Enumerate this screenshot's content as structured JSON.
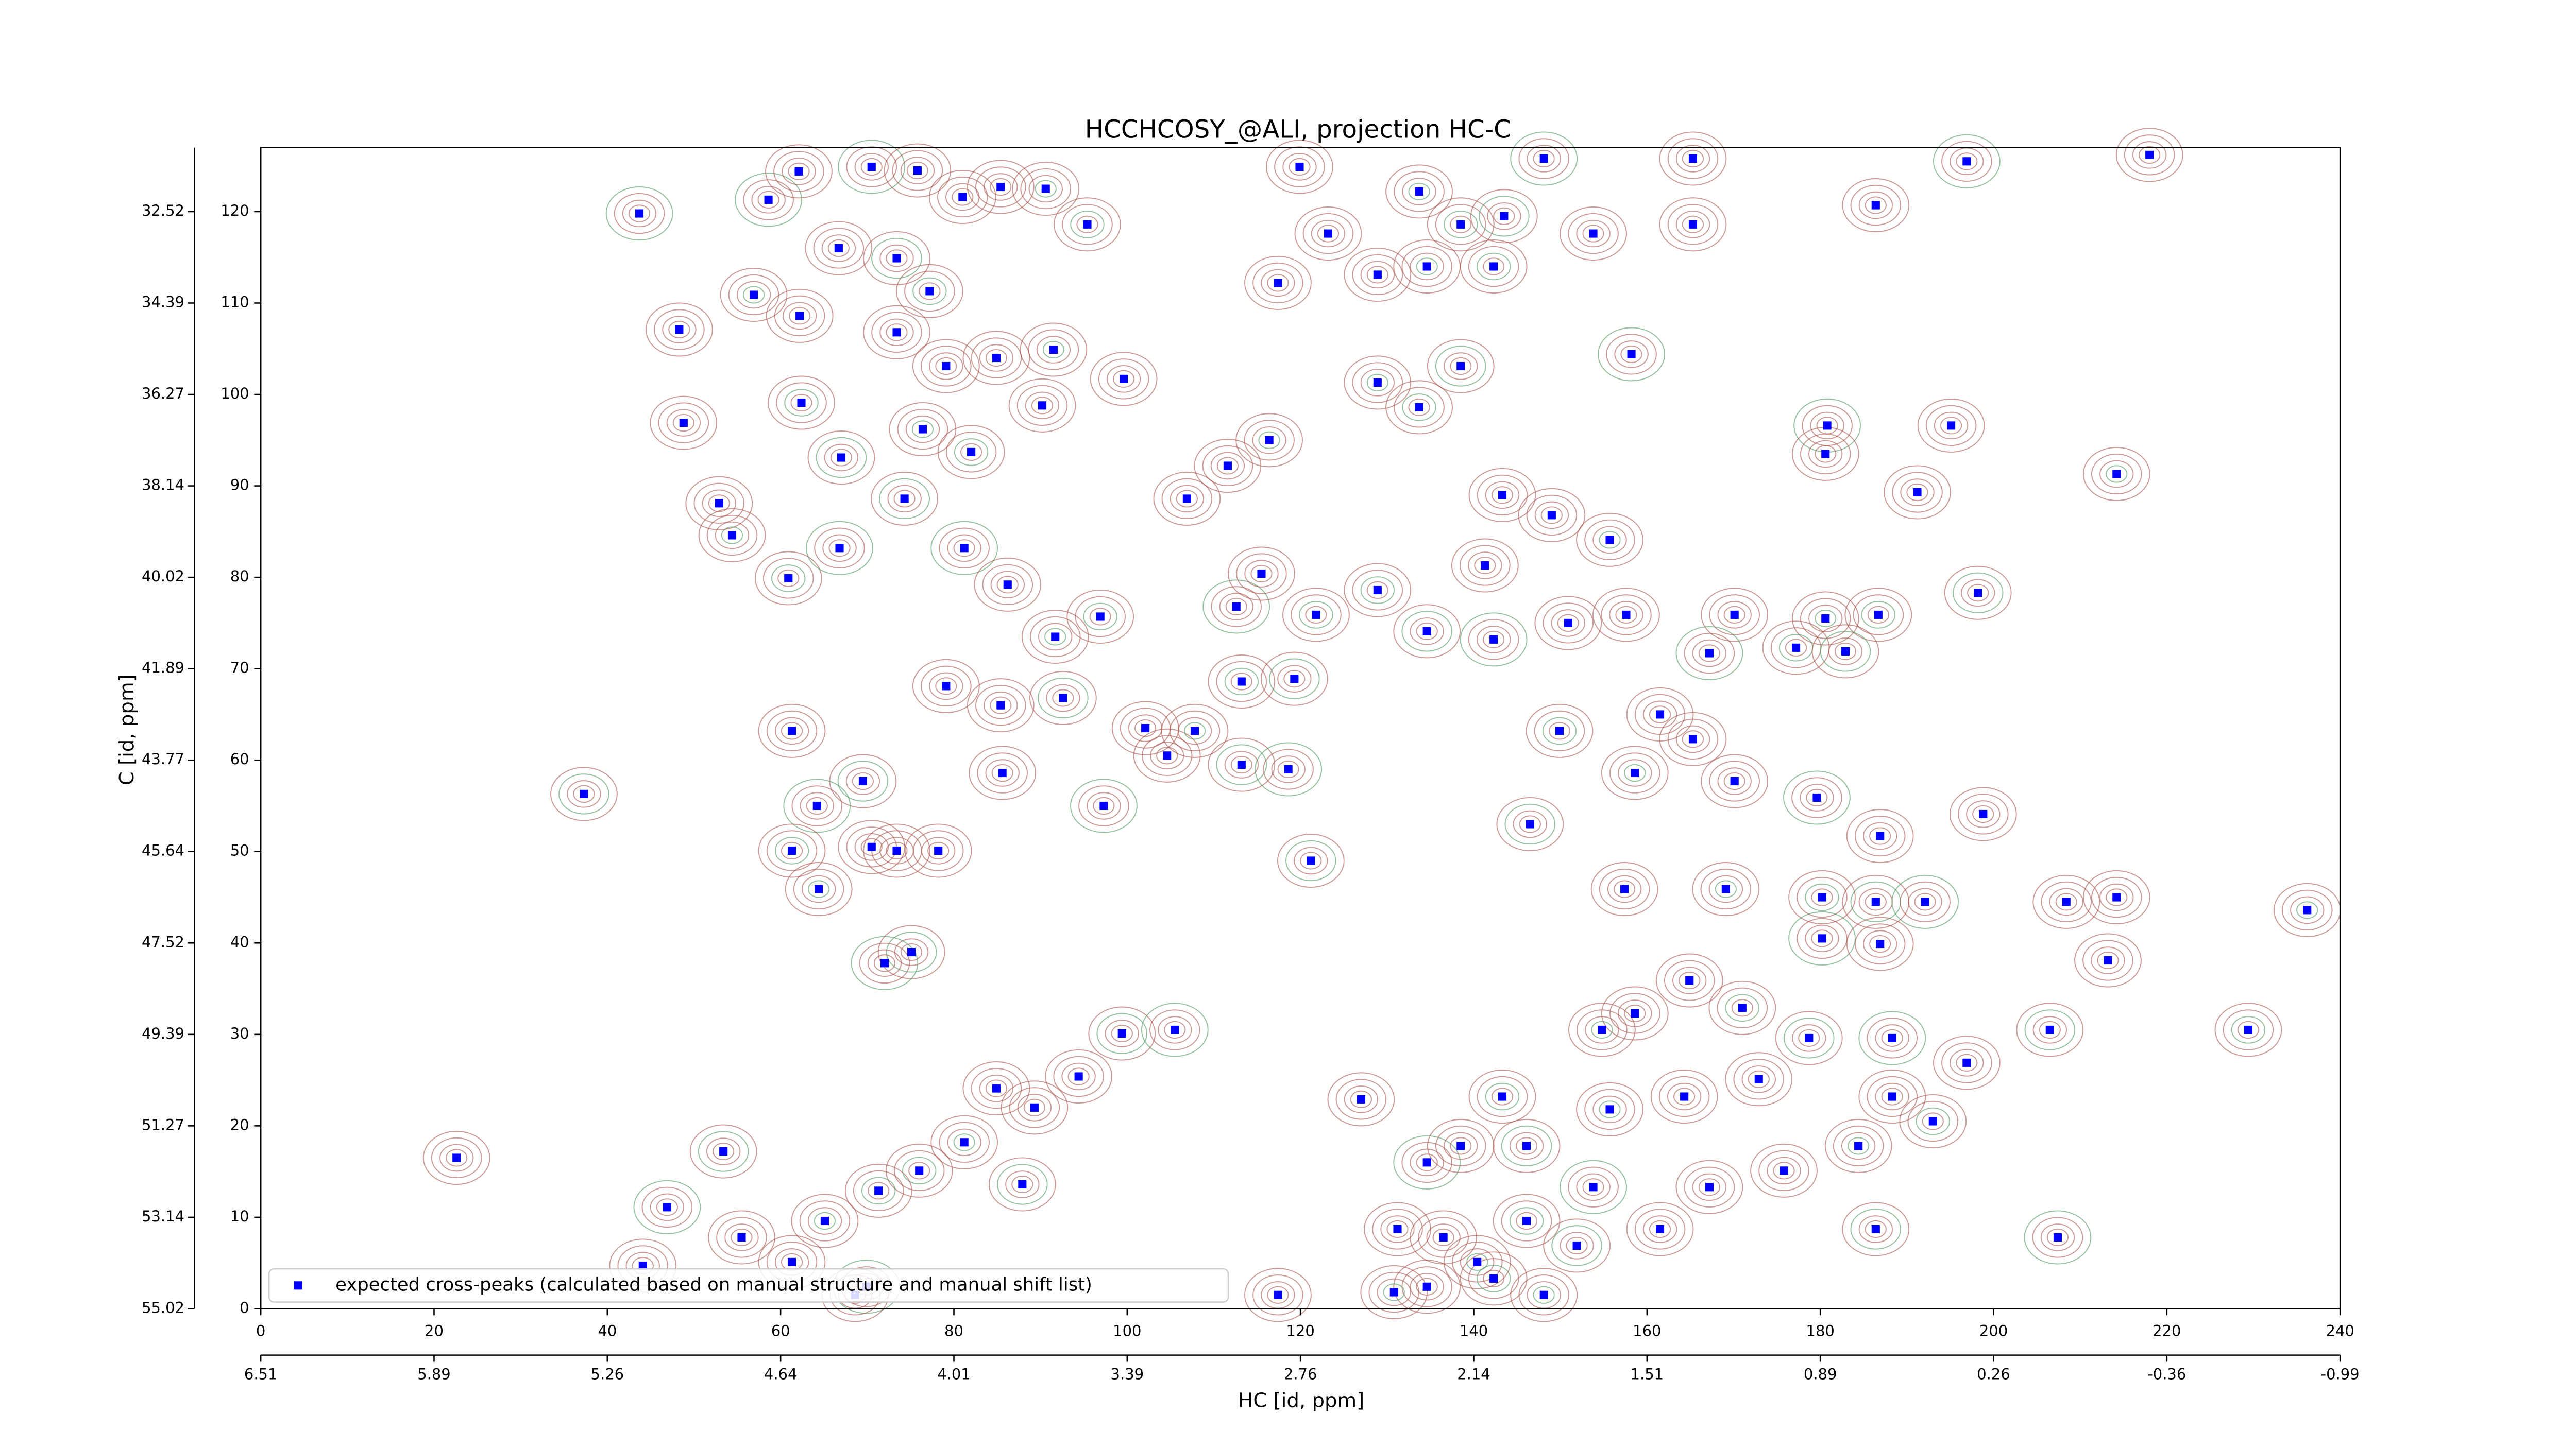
{
  "chart_data": {
    "type": "scatter",
    "title": "HCCHCOSY_@ALI, projection HC-C",
    "xlabel": "HC [id, ppm]",
    "ylabel": "C [id, ppm]",
    "xlim": [
      0,
      240
    ],
    "ylim": [
      0,
      127
    ],
    "xticks": [
      0,
      20,
      40,
      60,
      80,
      100,
      120,
      140,
      160,
      180,
      200,
      220,
      240
    ],
    "yticks": [
      0,
      10,
      20,
      30,
      40,
      50,
      60,
      70,
      80,
      90,
      100,
      110,
      120
    ],
    "x_ppm_ticks": [
      {
        "value": 0,
        "label": "6.51"
      },
      {
        "value": 20,
        "label": "5.89"
      },
      {
        "value": 40,
        "label": "5.26"
      },
      {
        "value": 60,
        "label": "4.64"
      },
      {
        "value": 80,
        "label": "4.01"
      },
      {
        "value": 100,
        "label": "3.39"
      },
      {
        "value": 120,
        "label": "2.76"
      },
      {
        "value": 140,
        "label": "2.14"
      },
      {
        "value": 160,
        "label": "1.51"
      },
      {
        "value": 180,
        "label": "0.89"
      },
      {
        "value": 200,
        "label": "0.26"
      },
      {
        "value": 220,
        "label": "-0.36"
      },
      {
        "value": 240,
        "label": "-0.99"
      }
    ],
    "y_ppm_ticks": [
      {
        "value": 0,
        "label": "55.02"
      },
      {
        "value": 10,
        "label": "53.14"
      },
      {
        "value": 20,
        "label": "51.27"
      },
      {
        "value": 30,
        "label": "49.39"
      },
      {
        "value": 40,
        "label": "47.52"
      },
      {
        "value": 50,
        "label": "45.64"
      },
      {
        "value": 60,
        "label": "43.77"
      },
      {
        "value": 70,
        "label": "41.89"
      },
      {
        "value": 80,
        "label": "40.02"
      },
      {
        "value": 90,
        "label": "38.14"
      },
      {
        "value": 100,
        "label": "36.27"
      },
      {
        "value": 110,
        "label": "34.39"
      },
      {
        "value": 120,
        "label": "32.52"
      }
    ],
    "legend": "lower left",
    "contour_colors": [
      "#a0463c",
      "#3c8c50"
    ],
    "series": [
      {
        "name": "expected cross-peaks (calculated based on manual structure and manual shift list)",
        "color": "#0000ff",
        "x": [
          43.7,
          48.3,
          48.8,
          52.9,
          54.4,
          60.9,
          37.3,
          58.6,
          62.1,
          66.7,
          62.2,
          56.9,
          62.4,
          67.0,
          66.8,
          73.4,
          79.1,
          84.9,
          76.4,
          82.0,
          74.3,
          81.2,
          86.2,
          90.2,
          99.6,
          91.5,
          77.2,
          73.4,
          70.5,
          75.8,
          81.0,
          85.4,
          90.6,
          95.4,
          69.5,
          64.2,
          70.5,
          73.4,
          78.2,
          64.4,
          61.3,
          75.1,
          72.0,
          79.1,
          85.4,
          85.6,
          91.7,
          96.9,
          99.4,
          105.5,
          89.3,
          84.9,
          94.4,
          81.2,
          76.0,
          53.4,
          46.9,
          55.5,
          61.3,
          22.6,
          65.1,
          71.3,
          87.9,
          69.9,
          44.1,
          104.6,
          102.1,
          107.8,
          113.2,
          119.3,
          112.6,
          115.5,
          106.9,
          111.6,
          116.4,
          121.8,
          113.2,
          118.6,
          119.9,
          123.2,
          128.9,
          134.6,
          138.5,
          143.5,
          148.1,
          153.8,
          165.3,
          117.4,
          128.9,
          133.7,
          138.5,
          158.2,
          143.3,
          149.0,
          141.3,
          155.7,
          128.9,
          134.6,
          142.3,
          150.9,
          157.6,
          170.1,
          180.6,
          186.7,
          198.2,
          180.8,
          180.6,
          191.2,
          195.1,
          214.2,
          177.2,
          182.9,
          167.2,
          161.5,
          165.3,
          170.1,
          158.6,
          149.9,
          146.5,
          179.6,
          198.8,
          186.9,
          157.4,
          169.1,
          180.2,
          186.4,
          192.1,
          208.4,
          214.2,
          213.2,
          236.2,
          229.4,
          206.5,
          180.2,
          186.9,
          164.9,
          158.6,
          154.8,
          171.0,
          178.7,
          188.3,
          196.9,
          172.9,
          164.3,
          155.7,
          143.3,
          146.1,
          134.6,
          138.5,
          131.2,
          136.5,
          140.4,
          146.1,
          151.9,
          153.8,
          161.5,
          167.2,
          175.8,
          184.4,
          193.0,
          186.4,
          207.4,
          188.3,
          127.0,
          134.6,
          148.1,
          142.3,
          121.2,
          196.9,
          218.0,
          186.4,
          165.3,
          133.7,
          142.3,
          92.6,
          97.3,
          61.3,
          68.6,
          117.4,
          130.8
        ],
        "values": [
          119.8,
          107.1,
          96.9,
          88.1,
          84.6,
          79.9,
          56.3,
          121.3,
          124.4,
          116.0,
          108.6,
          110.9,
          99.1,
          93.1,
          83.2,
          106.8,
          103.1,
          104.0,
          96.2,
          93.7,
          88.6,
          83.2,
          79.2,
          98.8,
          101.7,
          104.9,
          111.3,
          114.9,
          124.9,
          124.5,
          121.6,
          122.7,
          122.5,
          118.6,
          57.7,
          55.0,
          50.5,
          50.1,
          50.1,
          45.9,
          50.1,
          39.0,
          37.8,
          68.1,
          66.0,
          58.6,
          73.5,
          75.7,
          30.1,
          30.5,
          22.0,
          24.1,
          25.4,
          18.2,
          15.1,
          17.2,
          11.1,
          7.8,
          5.1,
          16.5,
          9.6,
          12.9,
          13.6,
          2.4,
          4.7,
          60.5,
          63.5,
          63.2,
          68.6,
          68.9,
          76.8,
          80.4,
          88.6,
          92.2,
          95.0,
          75.9,
          59.5,
          59.0,
          124.9,
          117.6,
          113.1,
          114.0,
          118.6,
          119.5,
          125.8,
          117.6,
          118.6,
          112.2,
          101.3,
          98.6,
          103.1,
          104.4,
          89.0,
          86.8,
          81.3,
          84.1,
          78.6,
          74.1,
          73.2,
          75.0,
          75.9,
          75.9,
          75.5,
          75.9,
          78.3,
          96.6,
          93.5,
          89.3,
          96.6,
          91.3,
          72.3,
          71.9,
          71.7,
          65.0,
          62.3,
          57.7,
          58.6,
          63.2,
          53.0,
          55.9,
          54.1,
          51.7,
          45.9,
          45.9,
          45.0,
          44.5,
          44.5,
          44.5,
          45.0,
          38.1,
          43.6,
          30.5,
          30.5,
          40.5,
          39.9,
          35.9,
          32.3,
          30.5,
          32.9,
          29.6,
          29.6,
          26.9,
          25.1,
          23.2,
          21.8,
          23.2,
          17.8,
          16.0,
          17.8,
          8.7,
          7.8,
          5.1,
          9.6,
          6.9,
          13.3,
          8.7,
          13.3,
          15.1,
          17.8,
          20.5,
          8.7,
          7.8,
          23.2,
          22.9,
          2.4,
          1.5,
          3.3,
          49.0,
          125.5,
          126.2,
          120.7,
          125.8,
          122.2,
          114.0,
          66.8,
          55.0,
          63.2,
          1.5,
          1.5,
          1.8
        ]
      }
    ]
  }
}
